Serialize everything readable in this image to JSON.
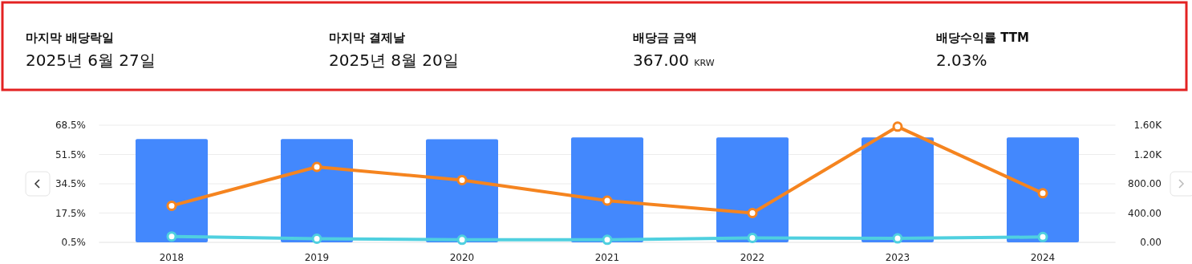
{
  "chart_data": [
    {
      "type": "other",
      "annotations": [
        "마지막 배당락일",
        "2025년 6월 27일",
        "마지막 결제날",
        "2025년 8월 20일",
        "배당금 금액",
        "367.00 KRW",
        "배당수익률 TTM",
        "2.03%"
      ]
    },
    {
      "type": "bar",
      "categories": [
        "2018",
        "2019",
        "2020",
        "2021",
        "2022",
        "2023",
        "2024"
      ],
      "series": [
        {
          "type": "bar",
          "color": "#4388fd",
          "values": [
            60.5,
            60.5,
            60.3,
            61.4,
            61.4,
            61.4,
            61.4
          ]
        },
        {
          "type": "line",
          "axis": "y2",
          "color": "#f5841f",
          "values": [
            500,
            1030,
            850,
            570,
            400,
            1580,
            670
          ]
        },
        {
          "type": "line",
          "color": "#4fd0df",
          "values": [
            3.9,
            2.6,
            2.0,
            2.0,
            3.1,
            2.8,
            3.6
          ]
        }
      ],
      "ylim": [
        0.5,
        68.5
      ],
      "yticks": [
        {
          "value": 0.5,
          "label": "0.5%"
        },
        {
          "value": 17.5,
          "label": "17.5%"
        },
        {
          "value": 34.5,
          "label": "34.5%"
        },
        {
          "value": 51.5,
          "label": "51.5%"
        },
        {
          "value": 68.5,
          "label": "68.5%"
        }
      ],
      "y2lim": [
        0,
        1600
      ],
      "y2ticks": [
        {
          "value": 0,
          "label": "0.00"
        },
        {
          "value": 400,
          "label": "400.00"
        },
        {
          "value": 800,
          "label": "800.00"
        },
        {
          "value": 1200,
          "label": "1.20K"
        },
        {
          "value": 1600,
          "label": "1.60K"
        }
      ],
      "grid": "y",
      "marker": "circle",
      "line_style": "solid"
    }
  ]
}
